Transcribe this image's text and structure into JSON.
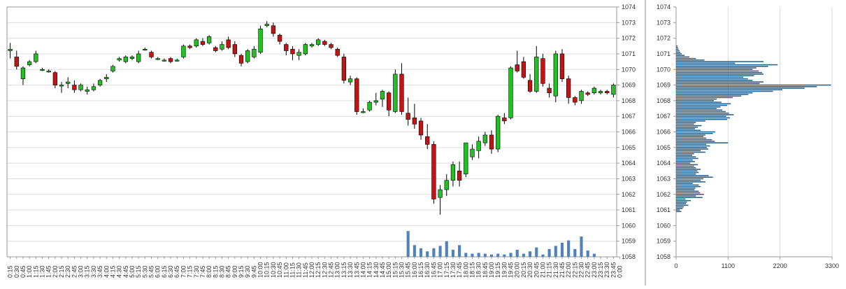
{
  "chart_data": [
    {
      "type": "candlestick",
      "ylim": [
        1058,
        1074
      ],
      "y_ticks": [
        "1058",
        "1059",
        "1060",
        "1061",
        "1062",
        "1063",
        "1064",
        "1065",
        "1066",
        "1067",
        "1068",
        "1069",
        "1070",
        "1071",
        "1072",
        "1073",
        "1074"
      ],
      "x_ticks": [
        "0:15",
        "0:30",
        "0:45",
        "1:00",
        "1:15",
        "1:30",
        "1:45",
        "2:00",
        "2:15",
        "2:30",
        "2:45",
        "3:00",
        "3:15",
        "3:30",
        "3:45",
        "4:00",
        "4:15",
        "4:30",
        "4:45",
        "5:00",
        "5:15",
        "5:30",
        "5:45",
        "6:00",
        "6:15",
        "6:30",
        "6:45",
        "7:00",
        "7:15",
        "7:30",
        "7:45",
        "8:00",
        "8:15",
        "8:30",
        "8:45",
        "9:00",
        "9:15",
        "9:30",
        "9:45",
        "10:00",
        "10:15",
        "10:30",
        "10:45",
        "11:00",
        "11:15",
        "11:30",
        "11:45",
        "12:00",
        "12:15",
        "12:30",
        "12:45",
        "13:00",
        "13:15",
        "13:30",
        "13:45",
        "14:00",
        "14:15",
        "14:30",
        "14:45",
        "15:00",
        "15:15",
        "15:30",
        "15:45",
        "16:00",
        "16:15",
        "16:30",
        "16:45",
        "17:00",
        "17:15",
        "17:30",
        "17:45",
        "18:00",
        "18:15",
        "18:30",
        "18:45",
        "19:00",
        "19:15",
        "19:30",
        "19:45",
        "20:00",
        "20:15",
        "20:30",
        "20:45",
        "21:00",
        "21:15",
        "21:30",
        "21:45",
        "22:00",
        "22:15",
        "22:30",
        "22:45",
        "23:00",
        "23:15",
        "23:30",
        "23:45",
        "0:00"
      ],
      "candles": [
        [
          1071.2,
          1071.3,
          1070.7,
          1071.7
        ],
        [
          1070.8,
          1070.2,
          1070.0,
          1071.2
        ],
        [
          1069.4,
          1070.1,
          1069.0,
          1070.2
        ],
        [
          1070.3,
          1070.5,
          1070.2,
          1070.6
        ],
        [
          1070.5,
          1071.0,
          1070.4,
          1071.2
        ],
        [
          1070.0,
          1070.0,
          1069.9,
          1070.1
        ],
        [
          1069.9,
          1069.9,
          1069.8,
          1070.0
        ],
        [
          1069.8,
          1069.0,
          1068.8,
          1069.9
        ],
        [
          1069.0,
          1069.0,
          1068.5,
          1069.2
        ],
        [
          1069.1,
          1069.2,
          1068.8,
          1069.5
        ],
        [
          1069.0,
          1068.7,
          1068.5,
          1069.3
        ],
        [
          1068.7,
          1069.0,
          1068.6,
          1069.1
        ],
        [
          1068.6,
          1068.7,
          1068.4,
          1068.9
        ],
        [
          1068.7,
          1068.9,
          1068.6,
          1069.1
        ],
        [
          1069.0,
          1069.3,
          1068.9,
          1069.4
        ],
        [
          1069.4,
          1069.5,
          1069.2,
          1069.7
        ],
        [
          1069.9,
          1070.2,
          1069.8,
          1070.3
        ],
        [
          1070.6,
          1070.7,
          1070.5,
          1070.8
        ],
        [
          1070.5,
          1070.8,
          1070.4,
          1070.9
        ],
        [
          1070.7,
          1070.8,
          1070.6,
          1070.9
        ],
        [
          1070.5,
          1071.0,
          1070.4,
          1071.2
        ],
        [
          1071.3,
          1071.3,
          1071.2,
          1071.4
        ],
        [
          1071.1,
          1070.8,
          1070.7,
          1071.2
        ],
        [
          1070.7,
          1070.7,
          1070.6,
          1070.8
        ],
        [
          1070.6,
          1070.6,
          1070.5,
          1070.7
        ],
        [
          1070.7,
          1070.5,
          1070.4,
          1070.8
        ],
        [
          1070.6,
          1070.6,
          1070.5,
          1070.7
        ],
        [
          1070.8,
          1071.5,
          1070.7,
          1071.6
        ],
        [
          1071.5,
          1071.4,
          1071.3,
          1071.6
        ],
        [
          1071.5,
          1071.9,
          1071.4,
          1072.0
        ],
        [
          1071.8,
          1071.6,
          1071.5,
          1072.0
        ],
        [
          1071.7,
          1072.1,
          1071.6,
          1072.2
        ],
        [
          1071.4,
          1071.2,
          1071.1,
          1071.5
        ],
        [
          1071.3,
          1071.6,
          1071.2,
          1071.8
        ],
        [
          1071.9,
          1071.4,
          1071.3,
          1072.1
        ],
        [
          1071.6,
          1071.0,
          1070.8,
          1071.8
        ],
        [
          1070.9,
          1070.4,
          1070.2,
          1071.0
        ],
        [
          1070.5,
          1071.2,
          1070.4,
          1071.3
        ],
        [
          1070.8,
          1071.3,
          1070.7,
          1071.5
        ],
        [
          1071.1,
          1072.6,
          1071.0,
          1072.8
        ],
        [
          1072.8,
          1072.9,
          1072.7,
          1073.1
        ],
        [
          1072.8,
          1072.3,
          1072.1,
          1073.0
        ],
        [
          1072.2,
          1071.8,
          1071.6,
          1072.3
        ],
        [
          1071.6,
          1071.2,
          1070.9,
          1071.7
        ],
        [
          1071.3,
          1071.0,
          1070.6,
          1071.5
        ],
        [
          1070.9,
          1071.1,
          1070.6,
          1071.3
        ],
        [
          1071.0,
          1071.6,
          1070.9,
          1071.7
        ],
        [
          1071.5,
          1071.6,
          1071.4,
          1071.7
        ],
        [
          1071.6,
          1071.9,
          1071.5,
          1072.0
        ],
        [
          1071.8,
          1071.6,
          1071.5,
          1071.9
        ],
        [
          1071.6,
          1071.4,
          1071.3,
          1071.7
        ],
        [
          1071.3,
          1070.9,
          1070.8,
          1071.4
        ],
        [
          1070.8,
          1069.3,
          1069.1,
          1071.0
        ],
        [
          1069.2,
          1069.4,
          1069.0,
          1069.6
        ],
        [
          1069.4,
          1067.3,
          1067.1,
          1069.5
        ],
        [
          1067.3,
          1067.3,
          1067.2,
          1067.5
        ],
        [
          1067.4,
          1067.9,
          1067.3,
          1068.0
        ],
        [
          1067.9,
          1068.0,
          1067.7,
          1068.5
        ],
        [
          1068.1,
          1068.6,
          1067.6,
          1068.7
        ],
        [
          1068.5,
          1067.4,
          1067.0,
          1068.6
        ],
        [
          1067.3,
          1069.7,
          1067.2,
          1070.0
        ],
        [
          1069.7,
          1067.3,
          1067.1,
          1070.4
        ],
        [
          1067.2,
          1066.8,
          1066.4,
          1068.2
        ],
        [
          1066.9,
          1066.5,
          1066.2,
          1067.8
        ],
        [
          1066.7,
          1065.8,
          1065.5,
          1066.9
        ],
        [
          1065.7,
          1065.2,
          1064.9,
          1066.5
        ],
        [
          1065.2,
          1061.7,
          1061.4,
          1065.4
        ],
        [
          1061.8,
          1062.3,
          1060.7,
          1062.6
        ],
        [
          1062.3,
          1062.9,
          1061.9,
          1063.3
        ],
        [
          1062.9,
          1063.9,
          1062.5,
          1064.1
        ],
        [
          1063.5,
          1062.9,
          1062.5,
          1064.1
        ],
        [
          1063.3,
          1065.3,
          1063.1,
          1065.3
        ],
        [
          1064.4,
          1064.9,
          1064.2,
          1065.2
        ],
        [
          1064.8,
          1065.4,
          1064.3,
          1065.7
        ],
        [
          1065.3,
          1065.8,
          1065.1,
          1066.0
        ],
        [
          1065.8,
          1064.9,
          1064.6,
          1066.1
        ],
        [
          1064.9,
          1067.0,
          1064.7,
          1067.1
        ],
        [
          1066.9,
          1066.7,
          1066.5,
          1067.2
        ],
        [
          1066.9,
          1070.1,
          1066.8,
          1070.2
        ],
        [
          1070.3,
          1069.9,
          1069.8,
          1071.2
        ],
        [
          1070.5,
          1069.5,
          1069.4,
          1070.8
        ],
        [
          1069.3,
          1068.6,
          1068.5,
          1069.7
        ],
        [
          1068.6,
          1070.8,
          1068.5,
          1071.5
        ],
        [
          1070.7,
          1069.1,
          1068.9,
          1071.0
        ],
        [
          1068.8,
          1068.5,
          1068.2,
          1069.1
        ],
        [
          1068.3,
          1071.0,
          1067.9,
          1071.2
        ],
        [
          1071.0,
          1069.4,
          1069.2,
          1071.3
        ],
        [
          1069.4,
          1068.2,
          1067.8,
          1069.6
        ],
        [
          1068.2,
          1067.9,
          1067.7,
          1068.3
        ],
        [
          1068.0,
          1068.6,
          1067.8,
          1068.7
        ],
        [
          1068.5,
          1068.4,
          1068.3,
          1068.6
        ],
        [
          1068.5,
          1068.8,
          1068.4,
          1068.9
        ],
        [
          1068.5,
          1068.6,
          1068.4,
          1068.7
        ],
        [
          1068.6,
          1068.5,
          1068.4,
          1068.7
        ],
        [
          1068.4,
          1069.0,
          1068.2,
          1069.1
        ]
      ],
      "volume": [
        0,
        0,
        0,
        0,
        0,
        0,
        0,
        0,
        0,
        0,
        0,
        0,
        0,
        0,
        0,
        0,
        0,
        0,
        0,
        0,
        0,
        0,
        0,
        0,
        0,
        0,
        0,
        0,
        0,
        0,
        0,
        0,
        0,
        0,
        0,
        0,
        0,
        0,
        0,
        0,
        0,
        0,
        0,
        0,
        0,
        0,
        0,
        0,
        0,
        0,
        0,
        0,
        0,
        0,
        0,
        0,
        0,
        0,
        0,
        0,
        0,
        0,
        1.65,
        0.75,
        0.55,
        0.35,
        0.55,
        0.7,
        1.0,
        0.45,
        0.75,
        0.25,
        0.2,
        0.25,
        0.2,
        0.15,
        0.2,
        0.15,
        0.25,
        0.45,
        0.2,
        0.35,
        0.6,
        0.15,
        0.5,
        0.7,
        0.9,
        1.05,
        0.5,
        1.3,
        0.4,
        0.2,
        0,
        0,
        0,
        0
      ],
      "volume_scale": [
        1058,
        1059,
        1060
      ],
      "colors": {
        "up": "#22c022",
        "down": "#c01515",
        "volume": "#4f81bd",
        "profile": "#2f5f82"
      }
    },
    {
      "type": "bar",
      "orientation": "horizontal",
      "x_ticks": [
        "0",
        "1100",
        "2200",
        "3300"
      ],
      "xlim": [
        0,
        3300
      ],
      "y_ticks": [
        "1058",
        "1059",
        "1060",
        "1061",
        "1062",
        "1063",
        "1064",
        "1065",
        "1066",
        "1067",
        "1068",
        "1069",
        "1070",
        "1071",
        "1072",
        "1073",
        "1074"
      ],
      "ylim": [
        1058,
        1074
      ],
      "bin_start": 1060.9,
      "bin_size": 0.1,
      "values": [
        110,
        80,
        140,
        160,
        260,
        210,
        230,
        310,
        200,
        560,
        420,
        590,
        510,
        480,
        390,
        410,
        520,
        480,
        350,
        620,
        520,
        580,
        780,
        690,
        420,
        480,
        450,
        520,
        420,
        380,
        460,
        300,
        400,
        350,
        470,
        420,
        340,
        380,
        620,
        520,
        680,
        650,
        720,
        640,
        1100,
        820,
        760,
        640,
        580,
        620,
        780,
        830,
        520,
        400,
        460,
        540,
        380,
        420,
        620,
        1080,
        1140,
        1060,
        1220,
        1120,
        1050,
        980,
        860,
        940,
        1080,
        1160,
        960,
        800,
        860,
        1200,
        1380,
        1530,
        1620,
        2050,
        2250,
        2720,
        2980,
        3280,
        1770,
        1850,
        1620,
        1520,
        1420,
        1650,
        1850,
        1820,
        1750,
        1620,
        1700,
        1950,
        2150,
        1250,
        1850,
        600,
        420,
        280,
        180,
        120,
        90,
        70,
        50,
        40,
        30
      ]
    }
  ]
}
